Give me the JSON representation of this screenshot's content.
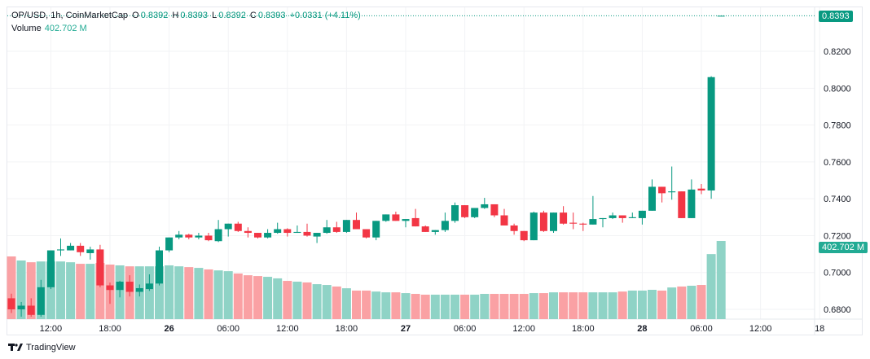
{
  "header": {
    "symbol": "OP/USD, 1h, CoinMarketCap",
    "o_label": "O",
    "o": "0.8392",
    "h_label": "H",
    "h": "0.8393",
    "l_label": "L",
    "l": "0.8392",
    "c_label": "C",
    "c": "0.8393",
    "change": "+0.0331 (+4.11%)",
    "volume_label": "Volume",
    "volume_value": "402.702 M"
  },
  "price_tag": "0.8393",
  "volume_tag": "402.702 M",
  "branding": "TradingView",
  "colors": {
    "up": "#089981",
    "down": "#f23645",
    "vol_up": "#8fd3c6",
    "vol_down": "#faa1a4"
  },
  "chart_data": {
    "type": "candlestick",
    "ylim": [
      0.675,
      0.845
    ],
    "y_ticks": [
      "0.6800",
      "0.7000",
      "0.7200",
      "0.7400",
      "0.7600",
      "0.7800",
      "0.8000",
      "0.8200"
    ],
    "x_ticks": [
      {
        "i": 4,
        "label": "12:00",
        "bold": false
      },
      {
        "i": 10,
        "label": "18:00",
        "bold": false
      },
      {
        "i": 16,
        "label": "26",
        "bold": true
      },
      {
        "i": 22,
        "label": "06:00",
        "bold": false
      },
      {
        "i": 28,
        "label": "12:00",
        "bold": false
      },
      {
        "i": 34,
        "label": "18:00",
        "bold": false
      },
      {
        "i": 40,
        "label": "27",
        "bold": true
      },
      {
        "i": 46,
        "label": "06:00",
        "bold": false
      },
      {
        "i": 52,
        "label": "12:00",
        "bold": false
      },
      {
        "i": 58,
        "label": "18:00",
        "bold": false
      },
      {
        "i": 64,
        "label": "28",
        "bold": true
      },
      {
        "i": 70,
        "label": "06:00",
        "bold": false
      },
      {
        "i": 76,
        "label": "12:00",
        "bold": false
      },
      {
        "i": 82,
        "label": "18",
        "bold": false
      }
    ],
    "ohlc": [
      [
        0.686,
        0.6885,
        0.678,
        0.68
      ],
      [
        0.68,
        0.684,
        0.676,
        0.682
      ],
      [
        0.682,
        0.686,
        0.676,
        0.677
      ],
      [
        0.677,
        0.696,
        0.676,
        0.692
      ],
      [
        0.692,
        0.712,
        0.691,
        0.712
      ],
      [
        0.712,
        0.7185,
        0.709,
        0.7125
      ],
      [
        0.712,
        0.716,
        0.712,
        0.7145
      ],
      [
        0.7145,
        0.716,
        0.709,
        0.711
      ],
      [
        0.7105,
        0.714,
        0.707,
        0.7125
      ],
      [
        0.7125,
        0.715,
        0.692,
        0.693
      ],
      [
        0.693,
        0.6945,
        0.683,
        0.6905
      ],
      [
        0.6905,
        0.6955,
        0.6865,
        0.695
      ],
      [
        0.695,
        0.6985,
        0.687,
        0.6895
      ],
      [
        0.6895,
        0.6935,
        0.687,
        0.6915
      ],
      [
        0.691,
        0.699,
        0.69,
        0.694
      ],
      [
        0.694,
        0.714,
        0.693,
        0.712
      ],
      [
        0.712,
        0.719,
        0.711,
        0.719
      ],
      [
        0.719,
        0.7225,
        0.718,
        0.7205
      ],
      [
        0.7205,
        0.721,
        0.718,
        0.719
      ],
      [
        0.719,
        0.7215,
        0.718,
        0.72
      ],
      [
        0.72,
        0.7215,
        0.717,
        0.7175
      ],
      [
        0.717,
        0.7285,
        0.7165,
        0.7235
      ],
      [
        0.7235,
        0.7265,
        0.7195,
        0.7265
      ],
      [
        0.7265,
        0.7275,
        0.722,
        0.7225
      ],
      [
        0.7225,
        0.7245,
        0.719,
        0.7215
      ],
      [
        0.7215,
        0.7215,
        0.7185,
        0.719
      ],
      [
        0.719,
        0.7235,
        0.7185,
        0.7215
      ],
      [
        0.7215,
        0.727,
        0.721,
        0.7235
      ],
      [
        0.7235,
        0.724,
        0.7195,
        0.7215
      ],
      [
        0.7215,
        0.7255,
        0.7215,
        0.722
      ],
      [
        0.722,
        0.7265,
        0.7195,
        0.72
      ],
      [
        0.7195,
        0.7215,
        0.716,
        0.7215
      ],
      [
        0.7215,
        0.7285,
        0.721,
        0.7245
      ],
      [
        0.7245,
        0.7275,
        0.7215,
        0.722
      ],
      [
        0.722,
        0.7285,
        0.7215,
        0.7285
      ],
      [
        0.7285,
        0.7325,
        0.7235,
        0.7235
      ],
      [
        0.7235,
        0.7235,
        0.7185,
        0.719
      ],
      [
        0.719,
        0.728,
        0.7175,
        0.728
      ],
      [
        0.728,
        0.7315,
        0.7275,
        0.7315
      ],
      [
        0.7315,
        0.733,
        0.728,
        0.728
      ],
      [
        0.728,
        0.729,
        0.7245,
        0.729
      ],
      [
        0.7295,
        0.7345,
        0.725,
        0.725
      ],
      [
        0.725,
        0.7255,
        0.722,
        0.722
      ],
      [
        0.722,
        0.723,
        0.7205,
        0.723
      ],
      [
        0.723,
        0.7325,
        0.722,
        0.728
      ],
      [
        0.728,
        0.738,
        0.727,
        0.7365
      ],
      [
        0.7365,
        0.7365,
        0.7295,
        0.73
      ],
      [
        0.73,
        0.735,
        0.7295,
        0.735
      ],
      [
        0.735,
        0.7405,
        0.7345,
        0.737
      ],
      [
        0.737,
        0.737,
        0.73,
        0.731
      ],
      [
        0.731,
        0.7345,
        0.7255,
        0.7255
      ],
      [
        0.7255,
        0.7265,
        0.7205,
        0.7225
      ],
      [
        0.7225,
        0.7225,
        0.717,
        0.7175
      ],
      [
        0.7175,
        0.733,
        0.7175,
        0.7325
      ],
      [
        0.7325,
        0.7335,
        0.722,
        0.7225
      ],
      [
        0.7225,
        0.7325,
        0.7215,
        0.7325
      ],
      [
        0.7325,
        0.736,
        0.726,
        0.7265
      ],
      [
        0.727,
        0.7325,
        0.7235,
        0.7265
      ],
      [
        0.7265,
        0.727,
        0.7225,
        0.726
      ],
      [
        0.726,
        0.7415,
        0.726,
        0.729
      ],
      [
        0.729,
        0.7295,
        0.7245,
        0.7295
      ],
      [
        0.7295,
        0.7325,
        0.729,
        0.731
      ],
      [
        0.731,
        0.731,
        0.727,
        0.7295
      ],
      [
        0.7295,
        0.7325,
        0.7295,
        0.73
      ],
      [
        0.7295,
        0.7335,
        0.726,
        0.7335
      ],
      [
        0.7335,
        0.7505,
        0.7335,
        0.7465
      ],
      [
        0.7465,
        0.7465,
        0.738,
        0.743
      ],
      [
        0.7435,
        0.7575,
        0.7395,
        0.744
      ],
      [
        0.744,
        0.744,
        0.7295,
        0.7295
      ],
      [
        0.7295,
        0.7505,
        0.7295,
        0.745
      ],
      [
        0.7455,
        0.748,
        0.7425,
        0.7445
      ],
      [
        0.7445,
        0.8065,
        0.74,
        0.806
      ],
      [
        0.8392,
        0.8393,
        0.8392,
        0.8393
      ]
    ],
    "volume_m": [
      323,
      302,
      293,
      297,
      297,
      297,
      293,
      285,
      285,
      289,
      281,
      277,
      272,
      272,
      272,
      272,
      277,
      272,
      268,
      264,
      256,
      251,
      247,
      235,
      226,
      222,
      218,
      210,
      197,
      193,
      189,
      180,
      176,
      168,
      159,
      147,
      147,
      142,
      138,
      138,
      134,
      130,
      126,
      126,
      126,
      126,
      126,
      126,
      130,
      130,
      130,
      130,
      130,
      134,
      134,
      138,
      138,
      138,
      138,
      138,
      138,
      138,
      142,
      147,
      147,
      151,
      147,
      163,
      168,
      172,
      176,
      335,
      402.702
    ]
  }
}
